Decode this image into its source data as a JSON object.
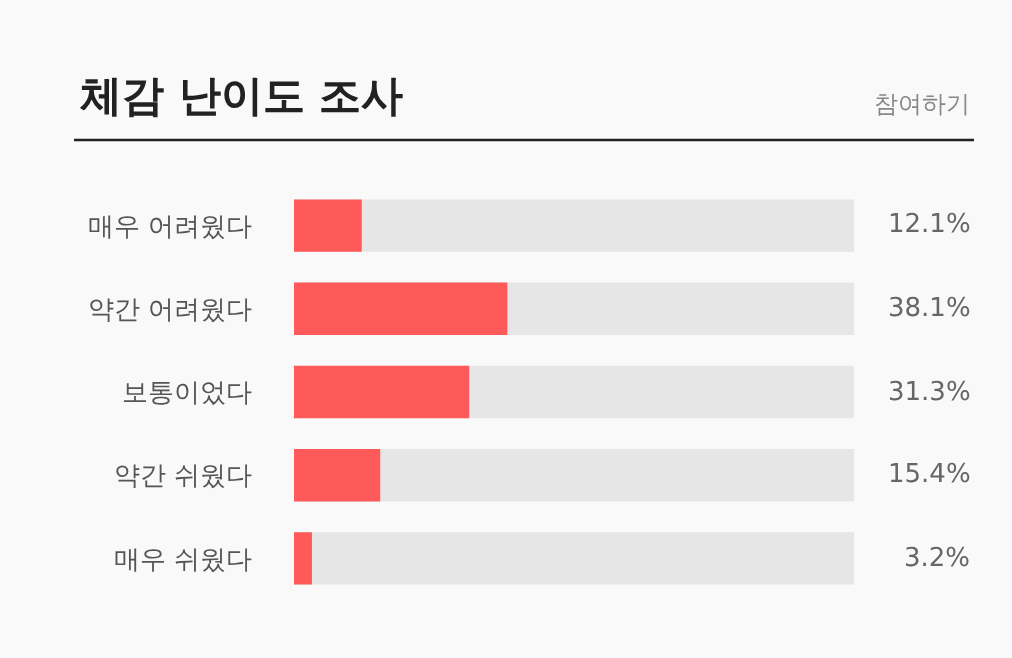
{
  "chart_data": {
    "type": "bar",
    "orientation": "horizontal",
    "title": "체감 난이도 조사",
    "annotations": [
      "참여하기"
    ],
    "categories": [
      "매우 어려웠다",
      "약간 어려웠다",
      "보통이었다",
      "약간 쉬웠다",
      "매우 쉬웠다"
    ],
    "values": [
      12.1,
      38.1,
      31.3,
      15.4,
      3.2
    ],
    "value_labels": [
      "12.1%",
      "38.1%",
      "31.3%",
      "15.4%",
      "3.2%"
    ],
    "color": "#ff5a5a",
    "xlim": [
      0,
      100
    ],
    "tick_labels": "y"
  }
}
